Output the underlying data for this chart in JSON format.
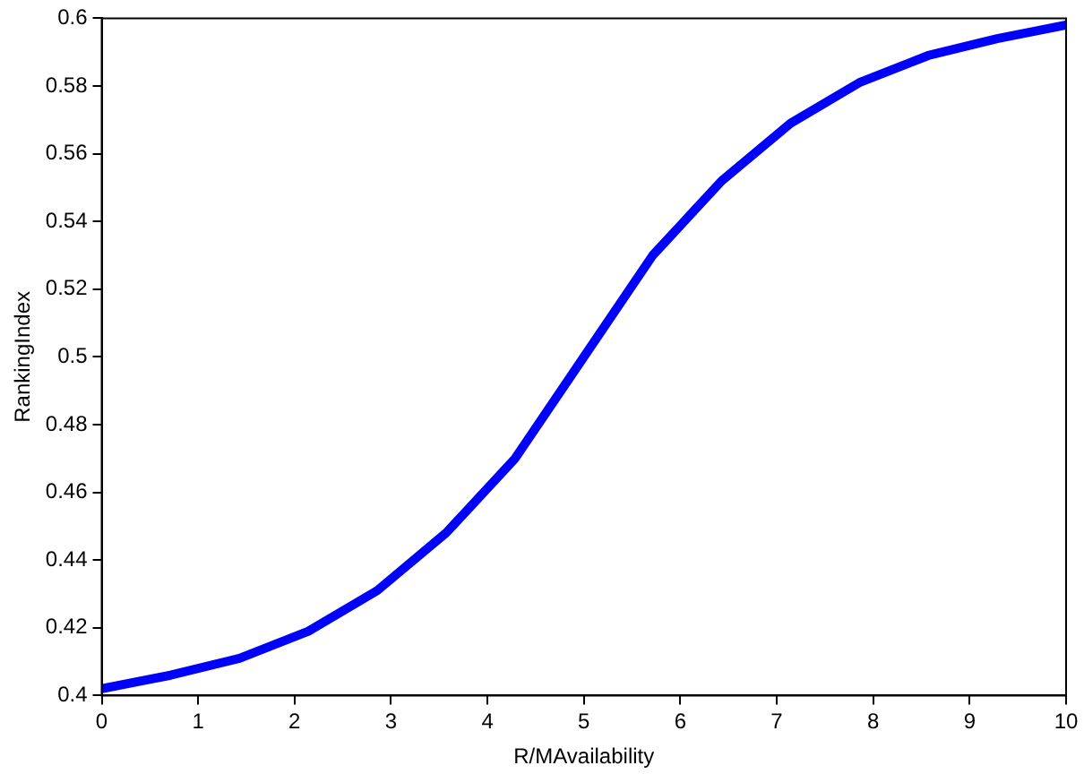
{
  "chart_data": {
    "type": "line",
    "xlabel": "R/MAvailability",
    "ylabel": "RankingIndex",
    "x": [
      0,
      0.714,
      1.429,
      2.143,
      2.857,
      3.571,
      4.286,
      5,
      5.714,
      6.429,
      7.143,
      7.857,
      8.571,
      9.286,
      10
    ],
    "series": [
      {
        "color": "#0000ff",
        "values": [
          0.402,
          0.406,
          0.411,
          0.419,
          0.431,
          0.448,
          0.47,
          0.5,
          0.53,
          0.552,
          0.569,
          0.581,
          0.589,
          0.594,
          0.598
        ]
      }
    ],
    "xlim": [
      0,
      10
    ],
    "xticks": [
      0,
      1,
      2,
      3,
      4,
      5,
      6,
      7,
      8,
      9,
      10
    ],
    "ylim": [
      0.4,
      0.6
    ],
    "yticks": [
      0.4,
      0.42,
      0.44,
      0.46,
      0.48,
      0.5,
      0.52,
      0.54,
      0.56,
      0.58,
      0.6
    ],
    "grid": false,
    "legend": false,
    "marker": "none",
    "line_style": "solid"
  }
}
